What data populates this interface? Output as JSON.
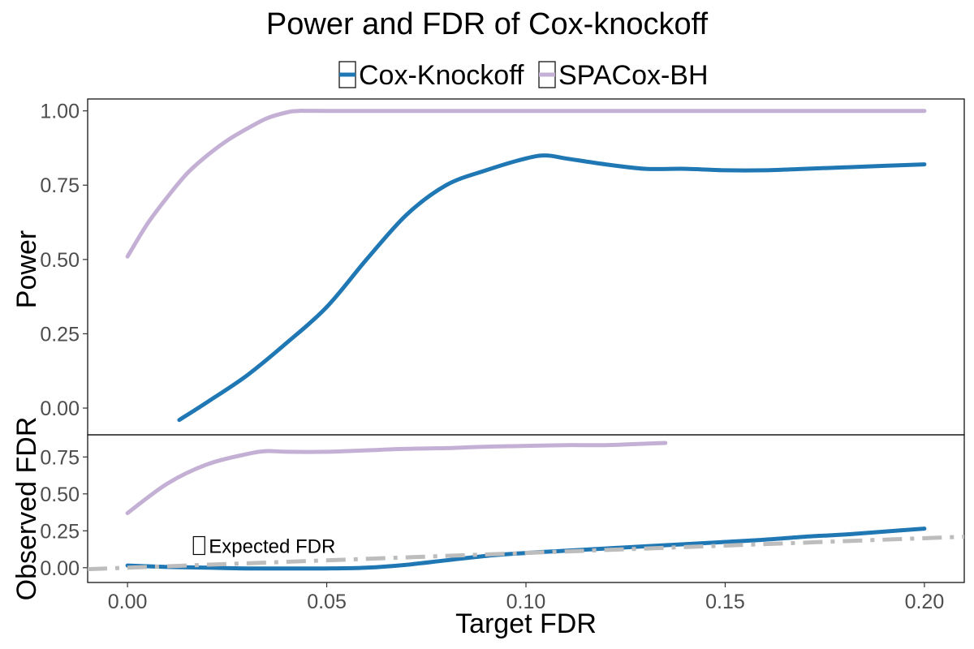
{
  "chart_data": [
    {
      "type": "line",
      "title": "Power and FDR of Cox-knockoff",
      "xlabel": "Target FDR",
      "ylabel": "Power",
      "xlim": [
        -0.01,
        0.21
      ],
      "ylim": [
        -0.09,
        1.04
      ],
      "xticks": [
        "0.00",
        "0.05",
        "0.10",
        "0.15",
        "0.20"
      ],
      "yticks": [
        "0.00",
        "0.25",
        "0.50",
        "0.75",
        "1.00"
      ],
      "grid": false,
      "legend": "top",
      "series": [
        {
          "name": "Cox-Knockoff",
          "color": "#1f77b4",
          "x": [
            0.013,
            0.02,
            0.03,
            0.04,
            0.05,
            0.06,
            0.07,
            0.08,
            0.09,
            0.1,
            0.105,
            0.11,
            0.12,
            0.13,
            0.14,
            0.15,
            0.16,
            0.17,
            0.18,
            0.19,
            0.2
          ],
          "y": [
            -0.04,
            0.02,
            0.11,
            0.22,
            0.34,
            0.5,
            0.65,
            0.75,
            0.8,
            0.84,
            0.85,
            0.84,
            0.82,
            0.805,
            0.805,
            0.8,
            0.8,
            0.805,
            0.81,
            0.815,
            0.82
          ]
        },
        {
          "name": "SPACox-BH",
          "color": "#c5b0d5",
          "x": [
            0.0,
            0.005,
            0.01,
            0.015,
            0.02,
            0.025,
            0.03,
            0.035,
            0.04,
            0.043,
            0.05,
            0.1,
            0.15,
            0.2
          ],
          "y": [
            0.51,
            0.62,
            0.71,
            0.79,
            0.85,
            0.9,
            0.94,
            0.975,
            0.995,
            1.0,
            1.0,
            1.0,
            1.0,
            1.0
          ]
        }
      ]
    },
    {
      "type": "line",
      "xlabel": "Target FDR",
      "ylabel": "Observed FDR",
      "xlim": [
        -0.01,
        0.21
      ],
      "ylim": [
        -0.1,
        0.9
      ],
      "xticks": [
        "0.00",
        "0.05",
        "0.10",
        "0.15",
        "0.20"
      ],
      "yticks": [
        "0.00",
        "0.25",
        "0.50",
        "0.75"
      ],
      "grid": false,
      "series": [
        {
          "name": "Cox-Knockoff",
          "color": "#1f77b4",
          "x": [
            0.0,
            0.01,
            0.02,
            0.03,
            0.04,
            0.05,
            0.06,
            0.07,
            0.08,
            0.09,
            0.1,
            0.11,
            0.12,
            0.13,
            0.14,
            0.15,
            0.16,
            0.17,
            0.18,
            0.19,
            0.2
          ],
          "y": [
            0.015,
            0.005,
            0.0,
            -0.005,
            -0.005,
            -0.005,
            0.0,
            0.02,
            0.05,
            0.08,
            0.1,
            0.115,
            0.13,
            0.145,
            0.16,
            0.175,
            0.19,
            0.21,
            0.225,
            0.245,
            0.265
          ]
        },
        {
          "name": "SPACox-BH",
          "color": "#c5b0d5",
          "x": [
            0.0,
            0.01,
            0.02,
            0.03,
            0.035,
            0.04,
            0.05,
            0.06,
            0.07,
            0.08,
            0.09,
            0.1,
            0.11,
            0.12,
            0.13,
            0.135
          ],
          "y": [
            0.37,
            0.57,
            0.7,
            0.77,
            0.79,
            0.785,
            0.785,
            0.795,
            0.805,
            0.81,
            0.82,
            0.825,
            0.83,
            0.83,
            0.84,
            0.845
          ]
        },
        {
          "name": "Expected FDR",
          "color": "#bdbdbd",
          "dashed": true,
          "x": [
            -0.01,
            0.21
          ],
          "y": [
            -0.01,
            0.21
          ]
        }
      ],
      "annotations": [
        {
          "text": "Expected FDR",
          "x": 0.02,
          "y": 0.15
        }
      ]
    }
  ]
}
